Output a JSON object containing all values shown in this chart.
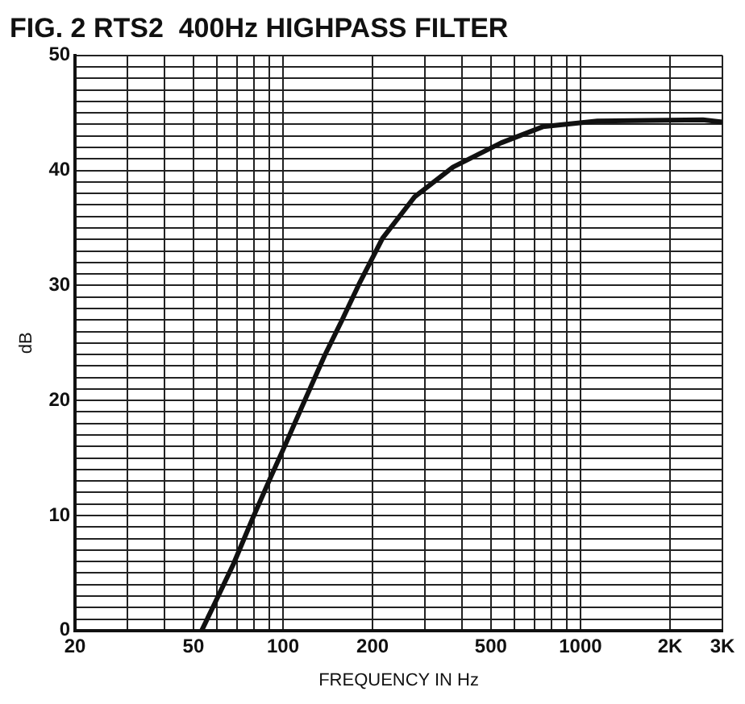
{
  "chart_data": {
    "type": "line",
    "title": "FIG. 2 RTS2  400Hz HIGHPASS FILTER",
    "xlabel": "FREQUENCY IN Hz",
    "ylabel": "dB",
    "log": "x",
    "grid": true,
    "marker": "none",
    "line_style": "solid",
    "x": [
      53.3,
      58.8,
      68.2,
      79.2,
      90.8,
      102.8,
      116,
      138,
      158,
      180,
      216,
      277,
      373,
      541,
      747,
      1140,
      2580,
      3000
    ],
    "series": [
      {
        "color": "#111111",
        "values": [
          0,
          2.3,
          5.8,
          9.8,
          13.3,
          16.4,
          19.5,
          23.9,
          27.0,
          30.1,
          34.1,
          37.7,
          40.3,
          42.4,
          43.8,
          44.3,
          44.4,
          44.2
        ]
      }
    ],
    "xlim": [
      20,
      3000
    ],
    "ylim": [
      0,
      50
    ],
    "xticks": [
      20,
      {
        "value": 30,
        "label": null
      },
      {
        "value": 40,
        "label": null
      },
      50,
      {
        "value": 60,
        "label": null
      },
      {
        "value": 70,
        "label": null
      },
      {
        "value": 80,
        "label": null
      },
      {
        "value": 90,
        "label": null
      },
      100,
      200,
      {
        "value": 300,
        "label": null
      },
      {
        "value": 400,
        "label": null
      },
      500,
      {
        "value": 600,
        "label": null
      },
      {
        "value": 700,
        "label": null
      },
      {
        "value": 800,
        "label": null
      },
      {
        "value": 900,
        "label": null
      },
      1000,
      {
        "value": 2000,
        "label": "2K"
      },
      {
        "value": 3000,
        "label": "3K"
      }
    ],
    "yticks": [
      0,
      {
        "value": 1,
        "label": null
      },
      {
        "value": 2,
        "label": null
      },
      {
        "value": 3,
        "label": null
      },
      {
        "value": 4,
        "label": null
      },
      {
        "value": 5,
        "label": null
      },
      {
        "value": 6,
        "label": null
      },
      {
        "value": 7,
        "label": null
      },
      {
        "value": 8,
        "label": null
      },
      {
        "value": 9,
        "label": null
      },
      10,
      {
        "value": 11,
        "label": null
      },
      {
        "value": 12,
        "label": null
      },
      {
        "value": 13,
        "label": null
      },
      {
        "value": 14,
        "label": null
      },
      {
        "value": 15,
        "label": null
      },
      {
        "value": 16,
        "label": null
      },
      {
        "value": 17,
        "label": null
      },
      {
        "value": 18,
        "label": null
      },
      {
        "value": 19,
        "label": null
      },
      20,
      {
        "value": 21,
        "label": null
      },
      {
        "value": 22,
        "label": null
      },
      {
        "value": 23,
        "label": null
      },
      {
        "value": 24,
        "label": null
      },
      {
        "value": 25,
        "label": null
      },
      {
        "value": 26,
        "label": null
      },
      {
        "value": 27,
        "label": null
      },
      {
        "value": 28,
        "label": null
      },
      {
        "value": 29,
        "label": null
      },
      30,
      {
        "value": 31,
        "label": null
      },
      {
        "value": 32,
        "label": null
      },
      {
        "value": 33,
        "label": null
      },
      {
        "value": 34,
        "label": null
      },
      {
        "value": 35,
        "label": null
      },
      {
        "value": 36,
        "label": null
      },
      {
        "value": 37,
        "label": null
      },
      {
        "value": 38,
        "label": null
      },
      {
        "value": 39,
        "label": null
      },
      40,
      {
        "value": 41,
        "label": null
      },
      {
        "value": 42,
        "label": null
      },
      {
        "value": 43,
        "label": null
      },
      {
        "value": 44,
        "label": null
      },
      {
        "value": 45,
        "label": null
      },
      {
        "value": 46,
        "label": null
      },
      {
        "value": 47,
        "label": null
      },
      {
        "value": 48,
        "label": null
      },
      {
        "value": 49,
        "label": null
      },
      50
    ]
  }
}
